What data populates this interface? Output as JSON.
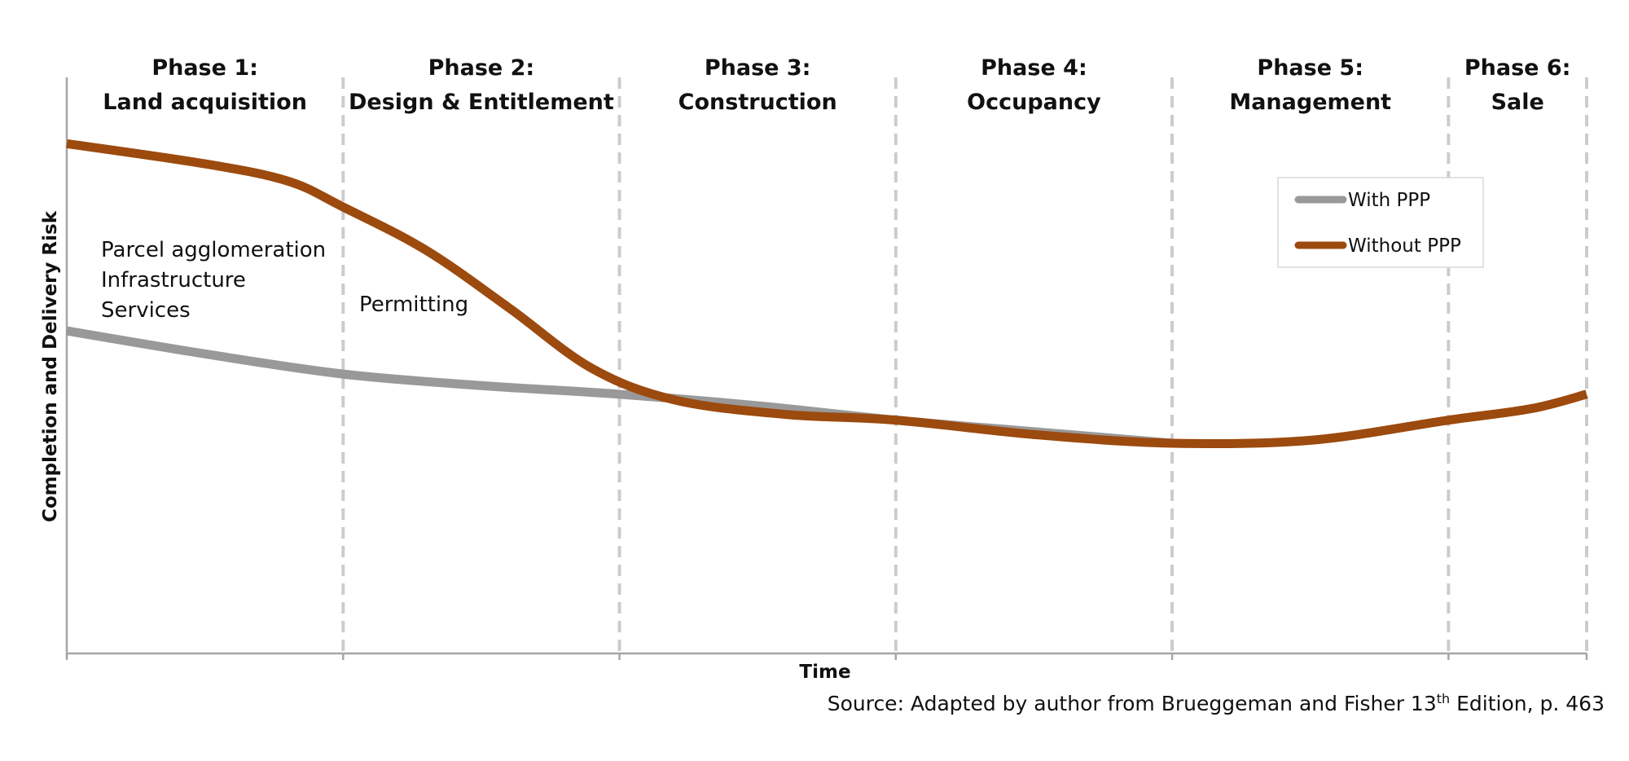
{
  "chart_data": {
    "type": "line",
    "title": "",
    "xlabel": "Time",
    "ylabel": "Completion and Delivery Risk",
    "phase_boundaries": [
      0,
      1,
      2,
      3,
      4,
      5,
      5.5
    ],
    "phases": [
      {
        "line1": "Phase 1:",
        "line2": "Land acquisition"
      },
      {
        "line1": "Phase 2:",
        "line2": "Design & Entitlement"
      },
      {
        "line1": "Phase 3:",
        "line2": "Construction"
      },
      {
        "line1": "Phase 4:",
        "line2": "Occupancy"
      },
      {
        "line1": "Phase 5:",
        "line2": "Management"
      },
      {
        "line1": "Phase 6:",
        "line2": "Sale"
      }
    ],
    "xlim": [
      0,
      5.5
    ],
    "ylim": [
      0,
      100
    ],
    "series": [
      {
        "name": "With PPP",
        "color": "#999999",
        "x": [
          0,
          0.5,
          1,
          1.5,
          2,
          2.5,
          3,
          3.5,
          4
        ],
        "y": [
          56,
          52,
          48.5,
          46.5,
          45,
          43,
          40.5,
          38.5,
          36.5
        ]
      },
      {
        "name": "Without PPP",
        "color": "#9C4A0E",
        "x": [
          0,
          0.5,
          0.8,
          1,
          1.3,
          1.6,
          1.9,
          2.2,
          2.6,
          3,
          3.5,
          4,
          4.5,
          5,
          5.3,
          5.5
        ],
        "y": [
          88.5,
          85,
          82,
          77.5,
          70,
          60,
          49.5,
          44,
          41.5,
          40.5,
          38,
          36.5,
          37,
          40.5,
          42.5,
          45
        ]
      }
    ],
    "annotations": [
      {
        "lines": [
          "Parcel agglomeration",
          "Infrastructure",
          "Services"
        ]
      },
      {
        "lines": [
          "Permitting"
        ]
      }
    ],
    "legend_position": "top-right",
    "source": {
      "prefix": "Source: Adapted by author from Brueggeman and Fisher 13",
      "sup": "th",
      "suffix": " Edition, p. 463"
    }
  }
}
